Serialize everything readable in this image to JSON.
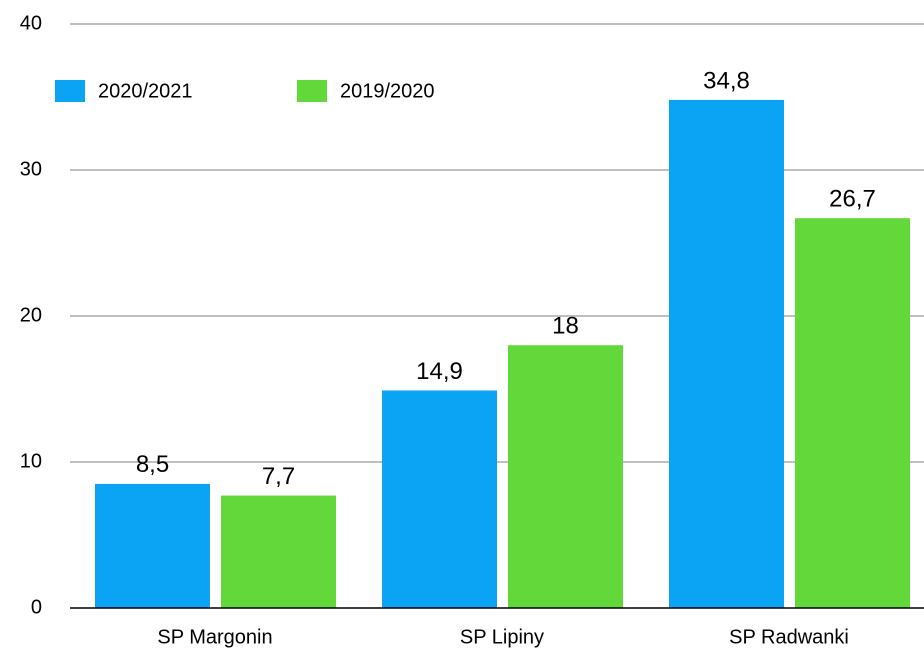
{
  "chart_data": {
    "type": "bar",
    "categories": [
      "SP Margonin",
      "SP Lipiny",
      "SP Radwanki"
    ],
    "series": [
      {
        "name": "2020/2021",
        "color": "#0ba4f4",
        "values": [
          8.5,
          14.9,
          34.8
        ],
        "value_labels": [
          "8,5",
          "14,9",
          "34,8"
        ]
      },
      {
        "name": "2019/2020",
        "color": "#62d83a",
        "values": [
          7.7,
          18,
          26.7
        ],
        "value_labels": [
          "7,7",
          "18",
          "26,7"
        ]
      }
    ],
    "ylim": [
      0,
      40
    ],
    "yticks": [
      0,
      10,
      20,
      30,
      40
    ],
    "grid": true,
    "legend": "top-left"
  }
}
